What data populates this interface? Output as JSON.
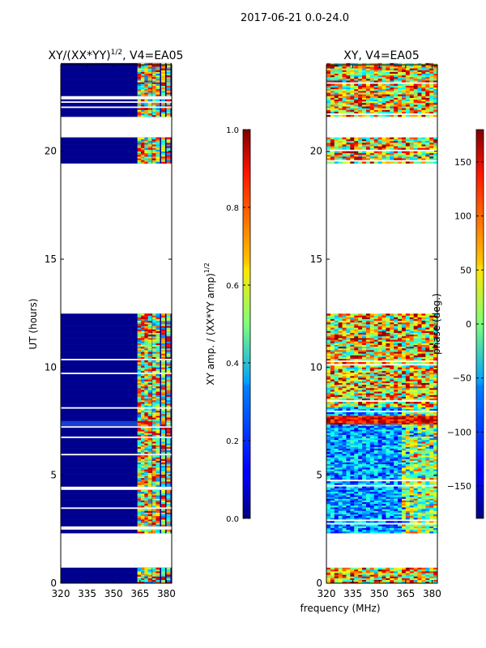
{
  "suptitle": "2017-06-21 0.0-24.0",
  "xlabel": "frequency (MHz)",
  "chart_data": [
    {
      "type": "heatmap",
      "title": "XY/(XX*YY)",
      "title_exponent": "1/2",
      "title_suffix": ", V4=EA05",
      "xlabel": "frequency (MHz)",
      "ylabel": "UT (hours)",
      "xlim": [
        320,
        383
      ],
      "ylim": [
        0,
        24
      ],
      "xticks": [
        320,
        335,
        350,
        365,
        380
      ],
      "yticks": [
        0,
        5,
        10,
        15,
        20
      ],
      "flagged_ut_ranges_hours": [
        [
          0.7,
          2.3
        ],
        [
          12.5,
          19.4
        ],
        [
          20.6,
          21.6
        ]
      ],
      "rfi_band_mhz": [
        363,
        377
      ],
      "colorbar": {
        "label": "XY amp. / (XX*YY amp)",
        "label_exponent": "1/2",
        "vmin": 0.0,
        "vmax": 1.0,
        "ticks": [
          "0.0",
          "0.2",
          "0.4",
          "0.6",
          "0.8",
          "1.0"
        ],
        "colormap": "jet"
      }
    },
    {
      "type": "heatmap",
      "title": "XY, V4=EA05",
      "xlabel": "frequency (MHz)",
      "ylabel": "",
      "xlim": [
        320,
        383
      ],
      "ylim": [
        0,
        24
      ],
      "xticks": [
        320,
        335,
        350,
        365,
        380
      ],
      "yticks": [
        0,
        5,
        10,
        15,
        20
      ],
      "flagged_ut_ranges_hours": [
        [
          0.7,
          2.3
        ],
        [
          12.5,
          19.4
        ],
        [
          20.6,
          21.6
        ]
      ],
      "colorbar": {
        "label": "phase (deg.)",
        "vmin": -180,
        "vmax": 180,
        "ticks": [
          "150",
          "100",
          "50",
          "0",
          "−50",
          "−100",
          "−150"
        ],
        "tick_values": [
          150,
          100,
          50,
          0,
          -50,
          -100,
          -150
        ],
        "colormap": "jet"
      }
    }
  ]
}
